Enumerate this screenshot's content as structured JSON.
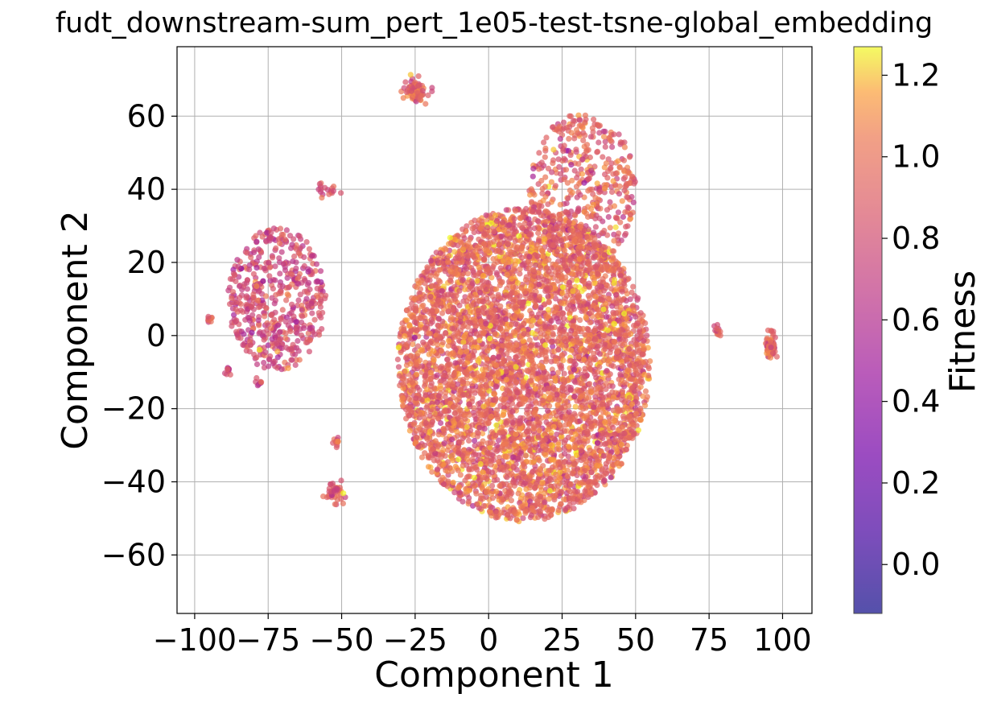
{
  "chart_data": {
    "type": "scatter",
    "title": "fudt_downstream-sum_pert_1e05-test-tsne-global_embedding",
    "xlabel": "Component 1",
    "ylabel": "Component 2",
    "xlim": [
      -106,
      110
    ],
    "ylim": [
      -76,
      79
    ],
    "x_ticks": [
      -100,
      -75,
      -50,
      -25,
      0,
      25,
      50,
      75,
      100
    ],
    "y_ticks": [
      -60,
      -40,
      -20,
      0,
      20,
      40,
      60
    ],
    "x_tick_labels": [
      "−100",
      "−75",
      "−50",
      "−25",
      "0",
      "25",
      "50",
      "75",
      "100"
    ],
    "y_tick_labels": [
      "−60",
      "−40",
      "−20",
      "0",
      "20",
      "40",
      "60"
    ],
    "grid": true,
    "colorbar": {
      "label": "Fitness",
      "colormap": "plasma",
      "range": [
        -0.12,
        1.27
      ],
      "ticks": [
        0.0,
        0.2,
        0.4,
        0.6,
        0.8,
        1.0,
        1.2
      ],
      "tick_labels": [
        "0.0",
        "0.2",
        "0.4",
        "0.6",
        "0.8",
        "1.0",
        "1.2"
      ]
    },
    "clusters": [
      {
        "center": [
          12,
          -8
        ],
        "spread": [
          33,
          33
        ],
        "count": 5200,
        "mean_fitness": 0.95
      },
      {
        "center": [
          32,
          40
        ],
        "spread": [
          14,
          16
        ],
        "count": 450,
        "mean_fitness": 0.92
      },
      {
        "center": [
          -72,
          10
        ],
        "spread": [
          13,
          15
        ],
        "count": 520,
        "mean_fitness": 0.78
      },
      {
        "center": [
          -25,
          67
        ],
        "spread": [
          3,
          2.5
        ],
        "count": 90,
        "mean_fitness": 0.9
      },
      {
        "center": [
          96,
          -3
        ],
        "spread": [
          1.3,
          2.2
        ],
        "count": 90,
        "mean_fitness": 0.92
      },
      {
        "center": [
          -52,
          -43
        ],
        "spread": [
          2.5,
          2
        ],
        "count": 40,
        "mean_fitness": 0.9
      },
      {
        "center": [
          -52,
          -29
        ],
        "spread": [
          1,
          1
        ],
        "count": 12,
        "mean_fitness": 0.85
      },
      {
        "center": [
          78,
          1
        ],
        "spread": [
          1,
          1.2
        ],
        "count": 14,
        "mean_fitness": 0.9
      },
      {
        "center": [
          -89,
          -10
        ],
        "spread": [
          1,
          1
        ],
        "count": 10,
        "mean_fitness": 0.7
      },
      {
        "center": [
          -55,
          40
        ],
        "spread": [
          2.5,
          2
        ],
        "count": 18,
        "mean_fitness": 0.85
      },
      {
        "center": [
          -78,
          -13
        ],
        "spread": [
          1,
          1
        ],
        "count": 8,
        "mean_fitness": 0.7
      },
      {
        "center": [
          -95,
          4
        ],
        "spread": [
          1,
          1
        ],
        "count": 10,
        "mean_fitness": 0.9
      }
    ],
    "colors": {
      "grid": "#b0b0b0",
      "axes": "#000000",
      "point_alpha": 0.7
    }
  }
}
